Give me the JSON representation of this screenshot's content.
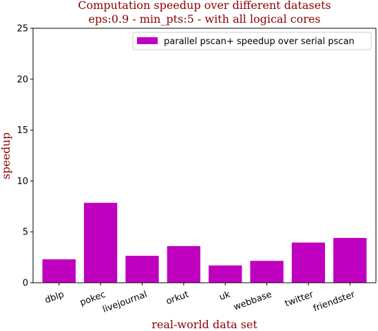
{
  "chart_data": {
    "type": "bar",
    "title_lines": [
      "Computation speedup over different datasets",
      "eps:0.9 - min_pts:5 - with all logical cores"
    ],
    "xlabel": "real-world data set",
    "ylabel": "speedup",
    "categories": [
      "dblp",
      "pokec",
      "livejournal",
      "orkut",
      "uk",
      "webbase",
      "twitter",
      "friendster"
    ],
    "series": [
      {
        "name": "parallel pscan+ speedup over serial pscan",
        "values": [
          2.3,
          7.85,
          2.65,
          3.6,
          1.7,
          2.15,
          3.95,
          4.4
        ],
        "color": "#bf00bf"
      }
    ],
    "ylim": [
      0,
      25
    ],
    "yticks": [
      0,
      5,
      10,
      15,
      20,
      25
    ],
    "grid": false,
    "legend_position": "top-right",
    "xtick_rotation": "rotated"
  }
}
